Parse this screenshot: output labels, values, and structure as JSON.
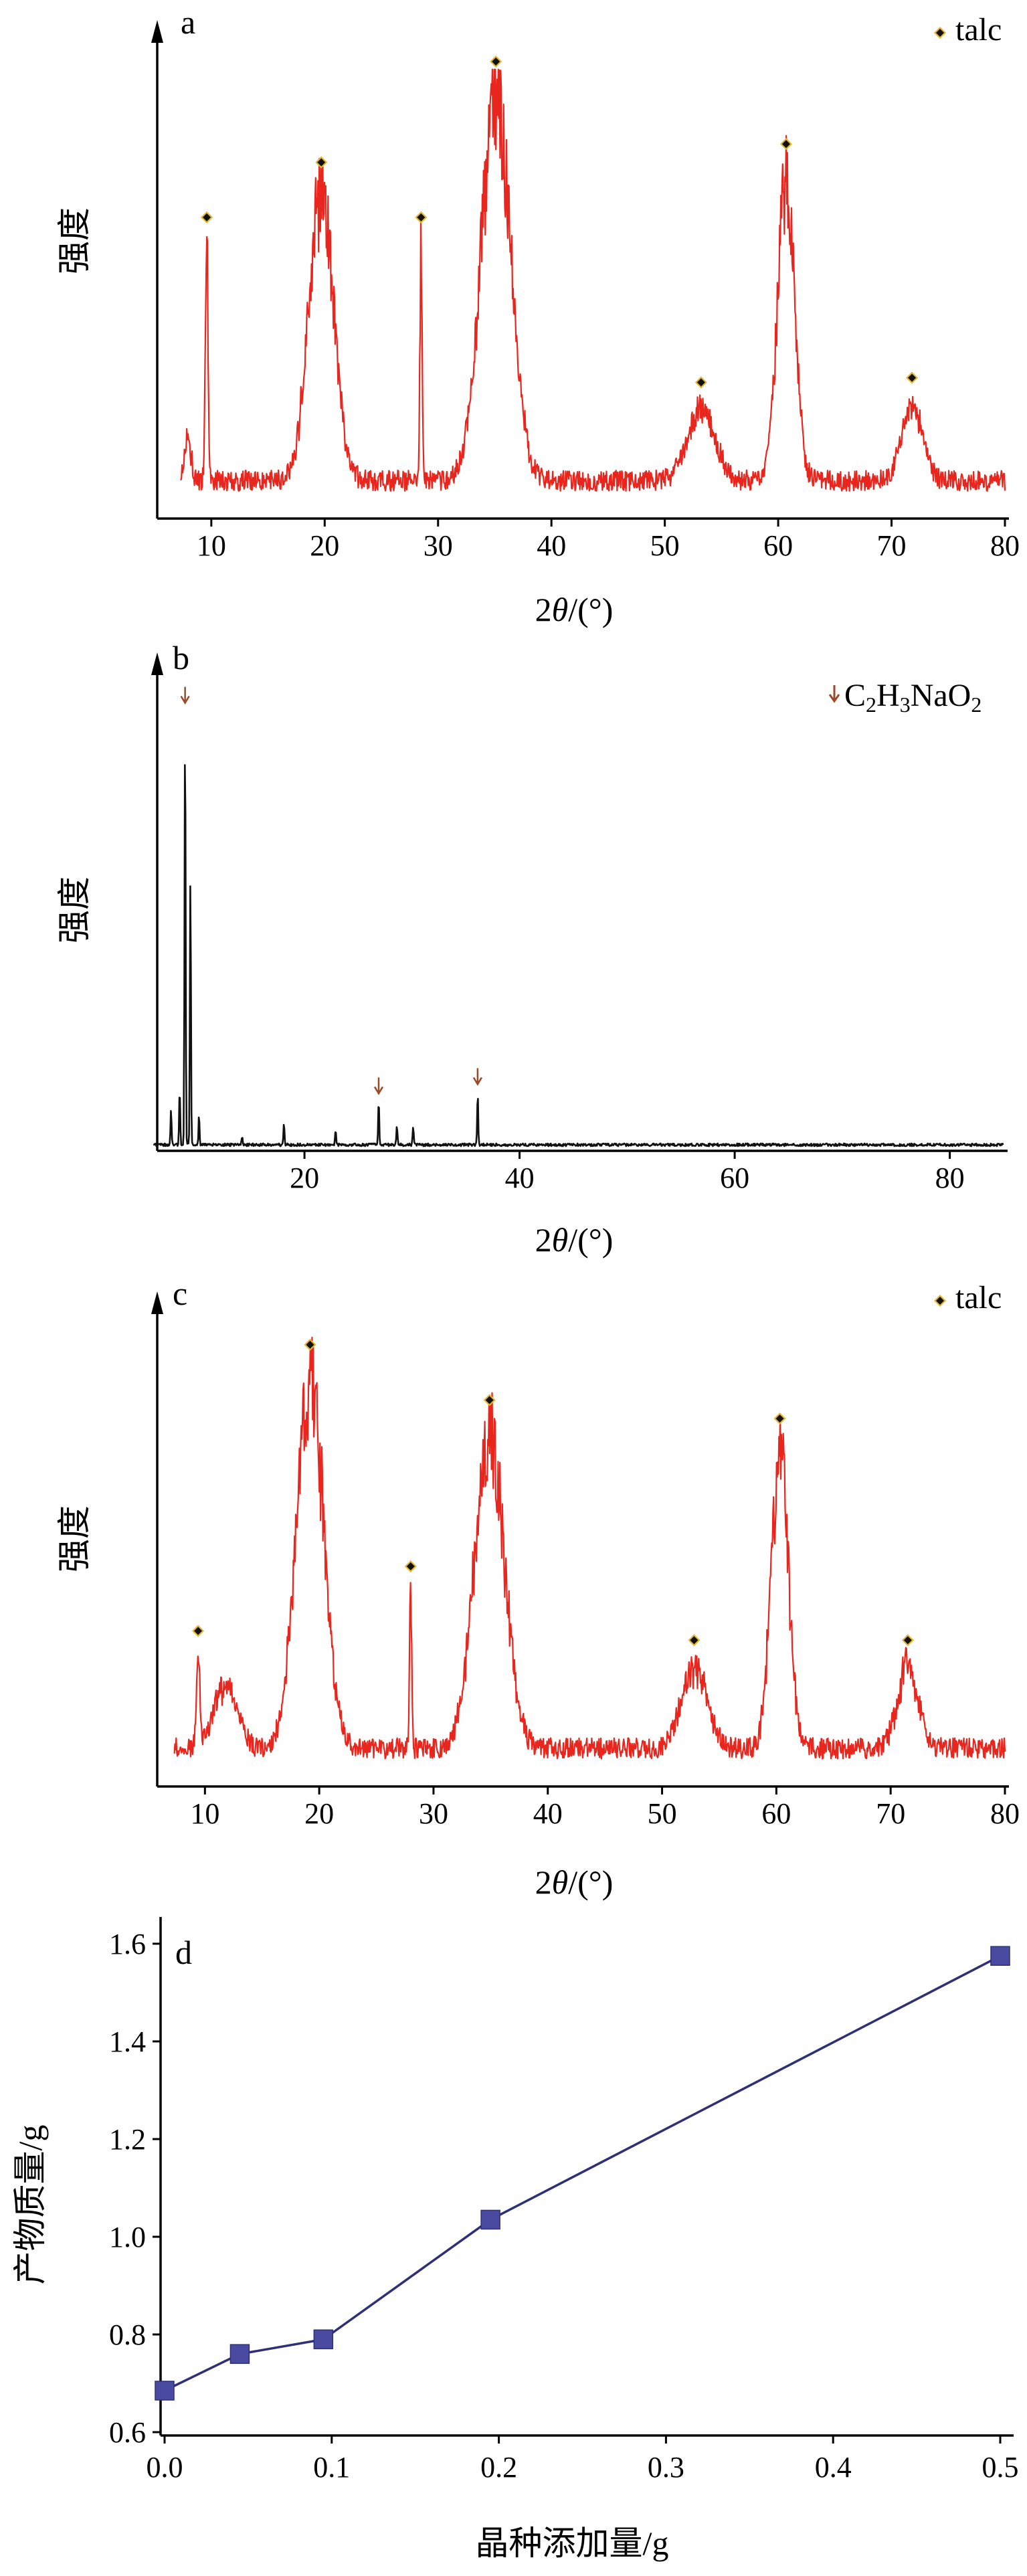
{
  "colors": {
    "xrd_red": "#e8261d",
    "xrd_black": "#111111",
    "marker_dark": "#111111",
    "marker_gold": "#e3b52c",
    "arrow_brown": "#9a4a2a",
    "line_d": "#2f2f78",
    "marker_d": "#4a4aa0"
  },
  "chart_data": [
    {
      "id": "a",
      "type": "line",
      "panel_label": "a",
      "xlabel": "2θ/(°)",
      "ylabel": "强度",
      "xlim": [
        7,
        80
      ],
      "x_ticks": [
        10,
        20,
        30,
        40,
        50,
        60,
        70,
        80
      ],
      "y_ticks": [],
      "legend": {
        "marker": "diamond",
        "label": "talc",
        "position": "top-right"
      },
      "baseline": 0.06,
      "noise": 0.045,
      "peaks": [
        {
          "x": 9.6,
          "height": 0.52,
          "width": 0.12
        },
        {
          "x": 19.7,
          "height": 0.64,
          "width": 1.1
        },
        {
          "x": 28.5,
          "height": 0.52,
          "width": 0.1
        },
        {
          "x": 35.1,
          "height": 0.86,
          "width": 1.3
        },
        {
          "x": 53.2,
          "height": 0.16,
          "width": 1.2
        },
        {
          "x": 60.7,
          "height": 0.68,
          "width": 0.75
        },
        {
          "x": 71.8,
          "height": 0.17,
          "width": 0.9
        },
        {
          "x": 7.9,
          "height": 0.1,
          "width": 0.3
        }
      ],
      "markers": [
        {
          "x": 9.6,
          "kind": "talc"
        },
        {
          "x": 19.7,
          "kind": "talc"
        },
        {
          "x": 28.5,
          "kind": "talc"
        },
        {
          "x": 35.1,
          "kind": "talc"
        },
        {
          "x": 53.2,
          "kind": "talc"
        },
        {
          "x": 60.7,
          "kind": "talc"
        },
        {
          "x": 71.8,
          "kind": "talc"
        }
      ]
    },
    {
      "id": "b",
      "type": "line",
      "panel_label": "b",
      "xlabel": "2θ/(°)",
      "ylabel": "强度",
      "xlim": [
        6,
        85
      ],
      "x_ticks": [
        20,
        40,
        60,
        80
      ],
      "y_ticks": [],
      "legend": {
        "marker": "arrow",
        "label": "C2H3NaO2",
        "position": "top-right"
      },
      "baseline": 0.01,
      "noise": 0.006,
      "peaks": [
        {
          "x": 8.9,
          "height": 0.93,
          "width": 0.05
        },
        {
          "x": 8.4,
          "height": 0.12,
          "width": 0.05
        },
        {
          "x": 9.4,
          "height": 0.55,
          "width": 0.05
        },
        {
          "x": 7.6,
          "height": 0.08,
          "width": 0.05
        },
        {
          "x": 10.2,
          "height": 0.06,
          "width": 0.05
        },
        {
          "x": 18.1,
          "height": 0.05,
          "width": 0.05
        },
        {
          "x": 22.9,
          "height": 0.03,
          "width": 0.05
        },
        {
          "x": 26.9,
          "height": 0.09,
          "width": 0.05
        },
        {
          "x": 28.6,
          "height": 0.04,
          "width": 0.05
        },
        {
          "x": 30.1,
          "height": 0.04,
          "width": 0.05
        },
        {
          "x": 36.1,
          "height": 0.11,
          "width": 0.05
        },
        {
          "x": 14.2,
          "height": 0.02,
          "width": 0.05
        }
      ],
      "markers": [
        {
          "x": 8.9,
          "kind": "arrow"
        },
        {
          "x": 26.9,
          "kind": "arrow"
        },
        {
          "x": 36.1,
          "kind": "arrow"
        }
      ]
    },
    {
      "id": "c",
      "type": "line",
      "panel_label": "c",
      "xlabel": "2θ/(°)",
      "ylabel": "强度",
      "xlim": [
        6,
        80
      ],
      "x_ticks": [
        10,
        20,
        30,
        40,
        50,
        60,
        70,
        80
      ],
      "y_ticks": [],
      "legend": {
        "marker": "diamond",
        "label": "talc",
        "position": "top-right"
      },
      "baseline": 0.06,
      "noise": 0.045,
      "peaks": [
        {
          "x": 9.4,
          "height": 0.2,
          "width": 0.15
        },
        {
          "x": 11.8,
          "height": 0.14,
          "width": 1.0
        },
        {
          "x": 19.2,
          "height": 0.82,
          "width": 1.2
        },
        {
          "x": 28.0,
          "height": 0.34,
          "width": 0.1
        },
        {
          "x": 34.9,
          "height": 0.7,
          "width": 1.3
        },
        {
          "x": 52.8,
          "height": 0.18,
          "width": 1.1
        },
        {
          "x": 60.3,
          "height": 0.66,
          "width": 0.75
        },
        {
          "x": 71.5,
          "height": 0.18,
          "width": 0.9
        }
      ],
      "markers": [
        {
          "x": 9.4,
          "kind": "talc"
        },
        {
          "x": 19.2,
          "kind": "talc"
        },
        {
          "x": 28.0,
          "kind": "talc"
        },
        {
          "x": 34.9,
          "kind": "talc"
        },
        {
          "x": 52.8,
          "kind": "talc"
        },
        {
          "x": 60.3,
          "kind": "talc"
        },
        {
          "x": 71.5,
          "kind": "talc"
        }
      ]
    },
    {
      "id": "d",
      "type": "line",
      "panel_label": "d",
      "xlabel": "晶种添加量/g",
      "ylabel": "产物质量/g",
      "xlim": [
        0,
        0.5
      ],
      "ylim": [
        0.6,
        1.6
      ],
      "x_ticks": [
        "0.0",
        "0.1",
        "0.2",
        "0.3",
        "0.4",
        "0.5"
      ],
      "y_ticks": [
        "0.6",
        "0.8",
        "1.0",
        "1.2",
        "1.4",
        "1.6"
      ],
      "series": [
        {
          "x": [
            0.0,
            0.045,
            0.095,
            0.195,
            0.5
          ],
          "y": [
            0.685,
            0.76,
            0.79,
            1.035,
            1.575
          ]
        }
      ]
    }
  ],
  "text": {
    "label_a": "a",
    "label_b": "b",
    "label_c": "c",
    "label_d": "d",
    "legend_talc_a": "talc",
    "legend_talc_c": "talc",
    "legend_b_C": "C",
    "legend_b_2": "2",
    "legend_b_H": "H",
    "legend_b_3": "3",
    "legend_b_NaO": "NaO",
    "legend_b_2b": "2",
    "ylabel_abc": "强度",
    "xlabel_abc_prefix": "2",
    "xlabel_abc_theta": "θ",
    "xlabel_abc_suffix": "/(°)",
    "xlabel_d": "晶种添加量/g",
    "ylabel_d": "产物质量/g"
  }
}
